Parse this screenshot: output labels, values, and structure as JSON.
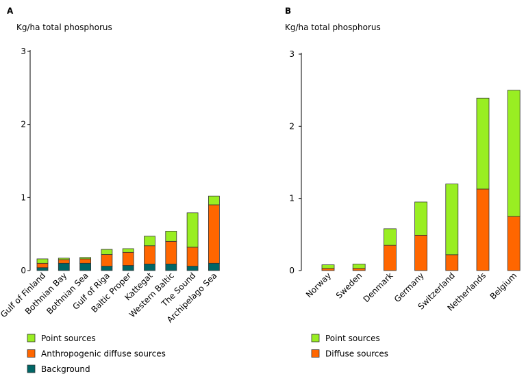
{
  "chart_data": [
    {
      "type": "bar",
      "stacked": true,
      "panel": "A",
      "ylabel": "Kg/ha total phosphorus",
      "ylim": [
        0,
        3
      ],
      "yticks": [
        0,
        1,
        2,
        3
      ],
      "grid": false,
      "legend_position": "bottom-left",
      "categories": [
        "Gulf of Finland",
        "Bothnian Bay",
        "Bothnian Sea",
        "Gulf of Riga",
        "Baltic Proper",
        "Kattegat",
        "Western Baltic",
        "The Sound",
        "Archipelago Sea"
      ],
      "series": [
        {
          "name": "Background",
          "color": "#006666",
          "values": [
            0.04,
            0.1,
            0.1,
            0.06,
            0.07,
            0.09,
            0.09,
            0.06,
            0.1
          ]
        },
        {
          "name": "Anthropogenic diffuse sources",
          "color": "#FF6600",
          "values": [
            0.06,
            0.05,
            0.06,
            0.16,
            0.18,
            0.25,
            0.31,
            0.26,
            0.8
          ]
        },
        {
          "name": "Point sources",
          "color": "#99EE22",
          "values": [
            0.06,
            0.02,
            0.02,
            0.07,
            0.05,
            0.13,
            0.14,
            0.47,
            0.12
          ]
        }
      ],
      "legend": [
        "Point sources",
        "Anthropogenic diffuse sources",
        "Background"
      ]
    },
    {
      "type": "bar",
      "stacked": true,
      "panel": "B",
      "ylabel": "Kg/ha total phosphorus",
      "ylim": [
        0,
        3
      ],
      "yticks": [
        0,
        1,
        2,
        3
      ],
      "grid": false,
      "legend_position": "bottom-left",
      "categories": [
        "Norway",
        "Sweden",
        "Denmark",
        "Germany",
        "Switzerland",
        "Netherlands",
        "Belgium"
      ],
      "series": [
        {
          "name": "Diffuse sources",
          "color": "#FF6600",
          "values": [
            0.03,
            0.03,
            0.35,
            0.49,
            0.22,
            1.13,
            0.75
          ]
        },
        {
          "name": "Point sources",
          "color": "#99EE22",
          "values": [
            0.05,
            0.06,
            0.23,
            0.46,
            0.98,
            1.26,
            1.75
          ]
        }
      ],
      "legend": [
        "Point sources",
        "Diffuse sources"
      ]
    }
  ]
}
